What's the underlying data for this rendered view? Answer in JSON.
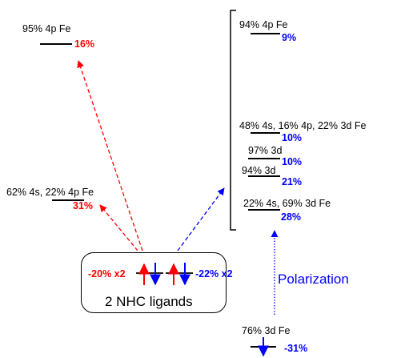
{
  "colors": {
    "contribution_red": "#ff0000",
    "contribution_blue": "#0000ff"
  },
  "levels_left": [
    {
      "composition": "95% 4p Fe",
      "contribution": "16%"
    },
    {
      "composition": "62% 4s, 22% 4p Fe",
      "contribution": "31%"
    }
  ],
  "levels_right": [
    {
      "composition": "94% 4p Fe",
      "contribution": "9%"
    },
    {
      "composition": "48% 4s, 16% 4p, 22% 3d Fe",
      "contribution": "10%"
    },
    {
      "composition": "97% 3d",
      "contribution": "10%"
    },
    {
      "composition": "94% 3d",
      "contribution": "21%"
    },
    {
      "composition": "22% 4s, 69% 3d Fe",
      "contribution": "28%"
    }
  ],
  "ligand": {
    "label": "2 NHC ligands",
    "left_value": "-20% x2",
    "right_value": "-22% x2"
  },
  "occupied_level": {
    "composition": "76% 3d Fe",
    "contribution": "-31%"
  },
  "polarization_label": "Polarization"
}
